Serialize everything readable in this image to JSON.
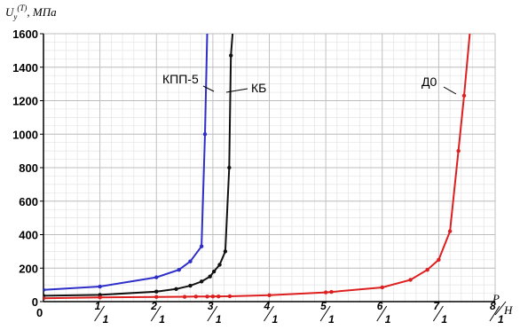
{
  "chart_data": {
    "type": "line",
    "ylabel": "U_y^(T), МПа",
    "xlabel": "P/H",
    "xlim": [
      0,
      8
    ],
    "ylim": [
      0,
      1600
    ],
    "grid": true,
    "y_ticks": [
      "0",
      "200",
      "400",
      "600",
      "800",
      "1000",
      "1200",
      "1400",
      "1600"
    ],
    "x_ticks": [
      {
        "value": 0,
        "label": "0"
      },
      {
        "value": 1,
        "num": "1",
        "den": "1"
      },
      {
        "value": 2,
        "num": "2",
        "den": "1"
      },
      {
        "value": 3,
        "num": "3",
        "den": "1"
      },
      {
        "value": 4,
        "num": "4",
        "den": "1"
      },
      {
        "value": 5,
        "num": "5",
        "den": "1"
      },
      {
        "value": 6,
        "num": "6",
        "den": "1"
      },
      {
        "value": 7,
        "num": "7",
        "den": "1"
      },
      {
        "value": 8,
        "num": "8",
        "den": "1"
      }
    ],
    "series": [
      {
        "name": "КПП-5",
        "color": "#2e2ec8",
        "x": [
          0,
          1,
          2,
          2.4,
          2.6,
          2.8,
          2.86,
          2.9
        ],
        "y": [
          70,
          90,
          145,
          190,
          240,
          330,
          1000,
          1600
        ]
      },
      {
        "name": "КБ",
        "color": "#111111",
        "x": [
          0,
          1,
          2,
          2.35,
          2.6,
          2.8,
          2.95,
          3.02,
          3.12,
          3.22,
          3.29,
          3.32,
          3.35
        ],
        "y": [
          35,
          40,
          60,
          75,
          95,
          120,
          150,
          180,
          220,
          300,
          800,
          1470,
          1600
        ]
      },
      {
        "name": "Д0",
        "color": "#dd1f1f",
        "x": [
          0,
          1,
          2,
          2.5,
          2.7,
          2.9,
          3.0,
          3.1,
          3.3,
          4,
          5,
          5.1,
          6,
          6.5,
          6.8,
          7,
          7.2,
          7.35,
          7.45,
          7.55
        ],
        "y": [
          20,
          25,
          28,
          29,
          30,
          30,
          31,
          31,
          32,
          38,
          55,
          58,
          85,
          130,
          190,
          250,
          420,
          900,
          1230,
          1600
        ]
      }
    ]
  }
}
